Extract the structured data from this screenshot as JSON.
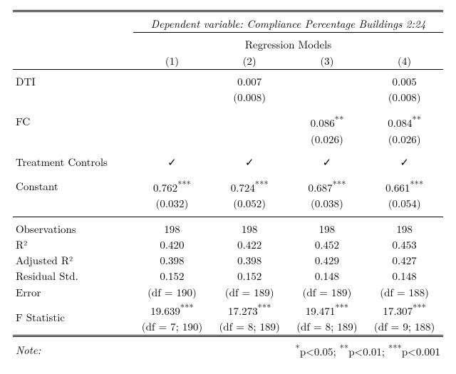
{
  "colors": {
    "text": "#000000",
    "bg": "#ffffff",
    "rule": "#000000"
  },
  "fontsize_pt": 15,
  "header": {
    "dep_var_label": "Dependent variable: Compliance Percentage Buildings 2:24",
    "models_label": "Regression Models",
    "col_labels": [
      "(1)",
      "(2)",
      "(3)",
      "(4)"
    ]
  },
  "rows": {
    "dti": {
      "label": "DTI",
      "coef": [
        "",
        "0.007",
        "",
        "0.005"
      ],
      "se": [
        "",
        "(0.008)",
        "",
        "(0.008)"
      ]
    },
    "fc": {
      "label": "FC",
      "coef": [
        "",
        "",
        "0.086**",
        "0.084**"
      ],
      "se": [
        "",
        "",
        "(0.026)",
        "(0.026)"
      ]
    },
    "treat": {
      "label": "Treatment Controls",
      "vals": [
        "✓",
        "✓",
        "✓",
        "✓"
      ]
    },
    "constant": {
      "label": "Constant",
      "coef": [
        "0.762***",
        "0.724***",
        "0.687***",
        "0.661***"
      ],
      "se": [
        "(0.032)",
        "(0.052)",
        "(0.038)",
        "(0.054)"
      ]
    }
  },
  "stats": {
    "obs": {
      "label": "Observations",
      "vals": [
        "198",
        "198",
        "198",
        "198"
      ]
    },
    "r2": {
      "label": "R²",
      "vals": [
        "0.420",
        "0.422",
        "0.452",
        "0.453"
      ]
    },
    "adjr2": {
      "label": "Adjusted R²",
      "vals": [
        "0.398",
        "0.398",
        "0.429",
        "0.427"
      ]
    },
    "rse": {
      "label1": "Residual Std.",
      "label2": " Error",
      "vals": [
        "0.152",
        "0.152",
        "0.148",
        "0.148"
      ],
      "df": [
        "(df = 190)",
        "(df = 189)",
        "(df = 189)",
        "(df = 188)"
      ]
    },
    "fstat": {
      "label": "F Statistic",
      "vals": [
        "19.639***",
        "17.273***",
        "19.471***",
        "17.307***"
      ],
      "df": [
        "(df = 7; 190)",
        "(df = 8; 189)",
        "(df = 8; 189)",
        "(df = 9; 188)"
      ]
    }
  },
  "note": {
    "label": "Note:",
    "text": "*p<0.05; **p<0.01; ***p<0.001"
  }
}
